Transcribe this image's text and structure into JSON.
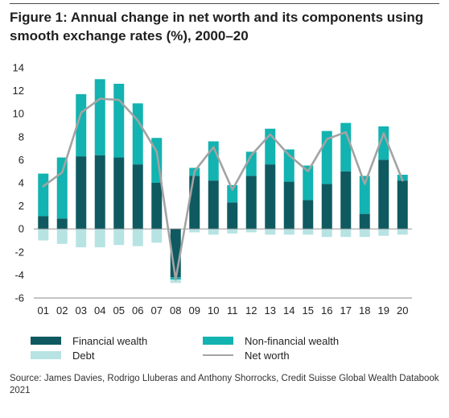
{
  "figure": {
    "title": "Figure 1: Annual change in net worth and its components using smooth exchange rates (%), 2000–20",
    "source": "Source: James Davies, Rodrigo Lluberas and Anthony Shorrocks, Credit Suisse Global Wealth Databook 2021"
  },
  "legend": {
    "financial": "Financial wealth",
    "nonfinancial": "Non-financial wealth",
    "debt": "Debt",
    "networth": "Net worth"
  },
  "colors": {
    "financial": "#0f5a61",
    "nonfinancial": "#12b3b0",
    "debt": "#b7e3e3",
    "networth": "#a3a3a3",
    "axis": "#888888",
    "text": "#222222"
  },
  "chart_data": {
    "type": "bar",
    "stacked": true,
    "title": "Figure 1: Annual change in net worth and its components using smooth exchange rates (%), 2000–20",
    "xlabel": "",
    "ylabel": "",
    "ylim": [
      -6,
      14
    ],
    "yticks": [
      -6,
      -4,
      -2,
      0,
      2,
      4,
      6,
      8,
      10,
      12,
      14
    ],
    "grid": false,
    "legend_position": "bottom",
    "categories": [
      "01",
      "02",
      "03",
      "04",
      "05",
      "06",
      "07",
      "08",
      "09",
      "10",
      "11",
      "12",
      "13",
      "14",
      "15",
      "16",
      "17",
      "18",
      "19",
      "20"
    ],
    "series": [
      {
        "name": "Financial wealth",
        "type": "bar",
        "values": [
          1.1,
          0.9,
          6.3,
          6.4,
          6.2,
          5.6,
          4.0,
          -4.2,
          4.6,
          4.2,
          2.3,
          4.6,
          5.6,
          4.1,
          2.5,
          3.9,
          5.0,
          1.3,
          6.0,
          4.2
        ]
      },
      {
        "name": "Non-financial wealth",
        "type": "bar",
        "values": [
          3.7,
          5.3,
          5.4,
          6.6,
          6.4,
          5.3,
          3.9,
          -0.2,
          0.7,
          3.4,
          1.5,
          2.1,
          3.1,
          2.8,
          3.0,
          4.6,
          4.2,
          3.3,
          2.9,
          0.5
        ]
      },
      {
        "name": "Debt",
        "type": "bar",
        "values": [
          -1.0,
          -1.3,
          -1.6,
          -1.6,
          -1.4,
          -1.5,
          -1.2,
          -0.3,
          -0.3,
          -0.5,
          -0.4,
          -0.3,
          -0.5,
          -0.5,
          -0.5,
          -0.7,
          -0.7,
          -0.7,
          -0.6,
          -0.5
        ]
      },
      {
        "name": "Net worth",
        "type": "line",
        "values": [
          3.7,
          4.9,
          10.1,
          11.3,
          11.2,
          9.4,
          6.7,
          -4.4,
          5.0,
          7.1,
          3.4,
          6.4,
          8.2,
          6.4,
          5.0,
          7.8,
          8.4,
          3.9,
          8.3,
          4.2
        ]
      }
    ]
  }
}
